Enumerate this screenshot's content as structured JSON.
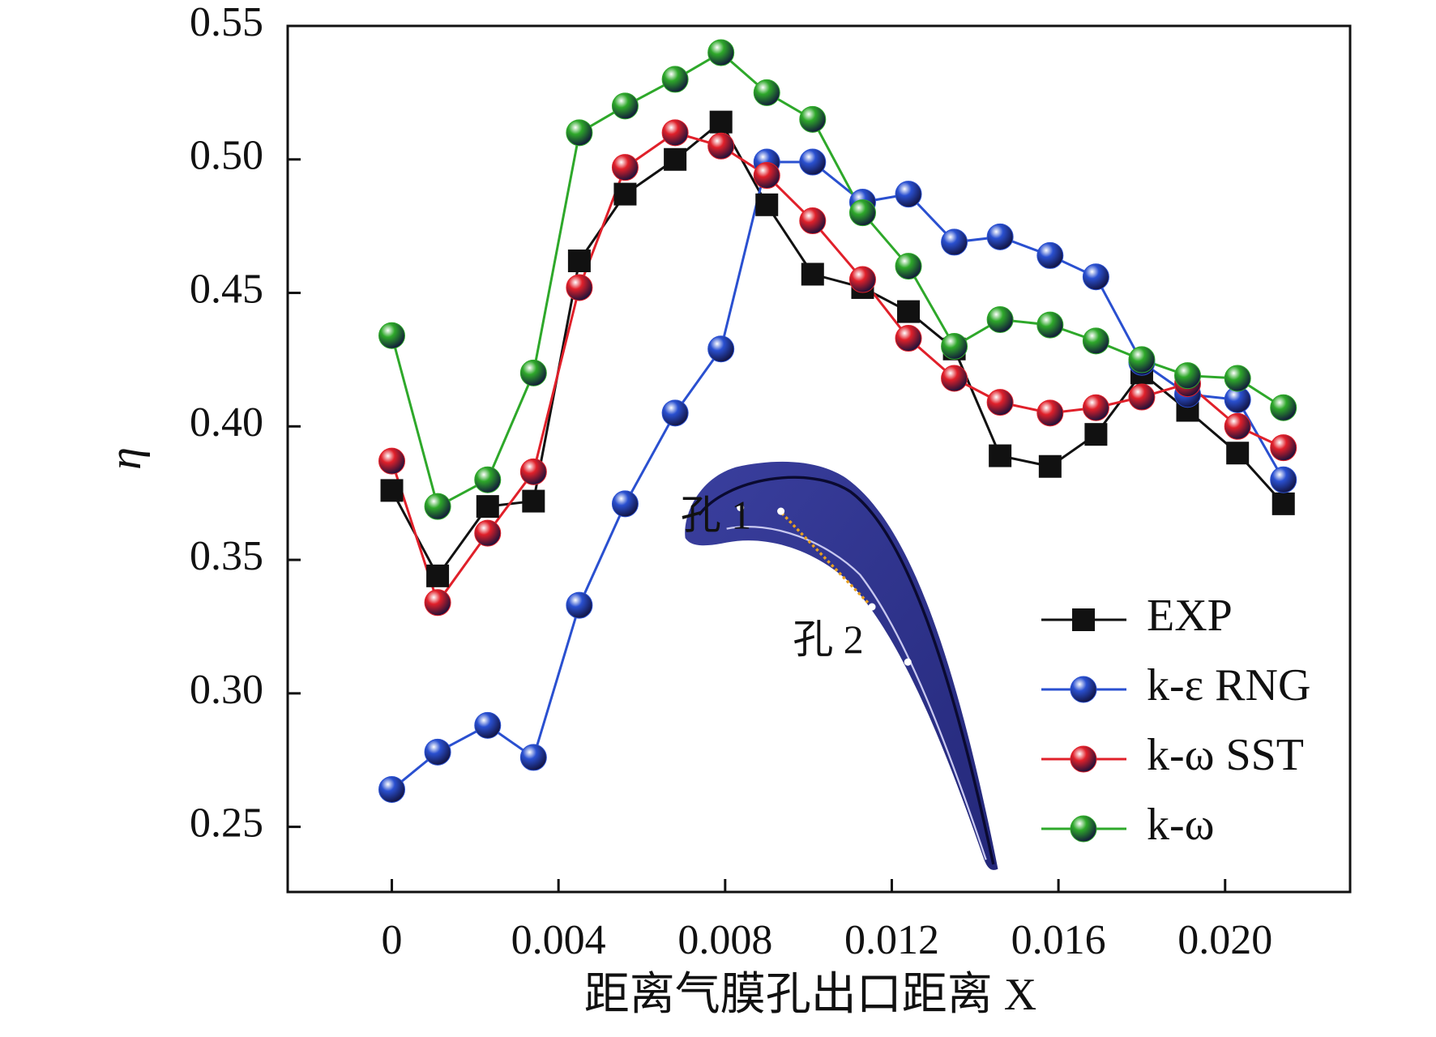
{
  "chart_data": {
    "type": "line",
    "x_label": "距离气膜孔出口距离 X",
    "y_label": "η",
    "annotations": [
      "孔 1",
      "孔 2"
    ],
    "x": [
      0,
      0.0011,
      0.0023,
      0.0034,
      0.0045,
      0.0056,
      0.0068,
      0.0079,
      0.009,
      0.0101,
      0.0113,
      0.0124,
      0.0135,
      0.0146,
      0.0158,
      0.0169,
      0.018,
      0.0191,
      0.0203,
      0.0214
    ],
    "series": [
      {
        "name": "EXP",
        "color": "#111111",
        "marker": "square",
        "values": [
          0.376,
          0.344,
          0.37,
          0.372,
          0.462,
          0.487,
          0.5,
          0.514,
          0.483,
          0.457,
          0.452,
          0.443,
          0.429,
          0.389,
          0.385,
          0.397,
          0.42,
          0.406,
          0.39,
          0.371
        ]
      },
      {
        "name": "k-ε RNG",
        "color": "#2a50d0",
        "marker": "circle",
        "values": [
          0.264,
          0.278,
          0.288,
          0.276,
          0.333,
          0.371,
          0.405,
          0.429,
          0.499,
          0.499,
          0.484,
          0.487,
          0.469,
          0.471,
          0.464,
          0.456,
          0.424,
          0.412,
          0.41,
          0.38
        ]
      },
      {
        "name": "k-ω SST",
        "color": "#e0202a",
        "marker": "circle",
        "values": [
          0.387,
          0.334,
          0.36,
          0.383,
          0.452,
          0.497,
          0.51,
          0.505,
          0.494,
          0.477,
          0.455,
          0.433,
          0.418,
          0.409,
          0.405,
          0.407,
          0.411,
          0.416,
          0.4,
          0.392
        ]
      },
      {
        "name": "k-ω",
        "color": "#2ea82a",
        "marker": "circle",
        "values": [
          0.434,
          0.37,
          0.38,
          0.42,
          0.51,
          0.52,
          0.53,
          0.54,
          0.525,
          0.515,
          0.48,
          0.46,
          0.43,
          0.44,
          0.438,
          0.432,
          0.425,
          0.419,
          0.418,
          0.407
        ]
      }
    ],
    "xlim": [
      -0.0025,
      0.023
    ],
    "ylim": [
      0.2256,
      0.55
    ],
    "xticks": [
      0,
      0.004,
      0.008,
      0.012,
      0.016,
      {
        "value": 0.02,
        "label": "0.020"
      }
    ],
    "yticks": [
      0.25,
      {
        "value": 0.3,
        "label": "0.30"
      },
      0.35,
      {
        "value": 0.4,
        "label": "0.40"
      },
      0.45,
      {
        "value": 0.5,
        "label": "0.50"
      },
      0.55
    ],
    "legend": "lower right"
  }
}
